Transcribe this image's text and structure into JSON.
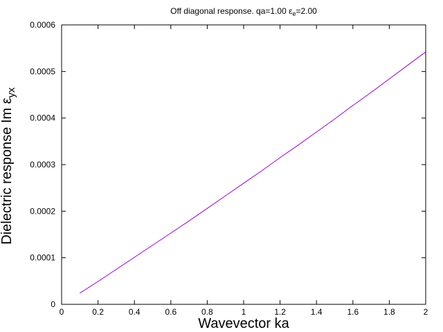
{
  "chart_data": {
    "type": "line",
    "title": [
      "Off diagonal response. qa=1.00 ε",
      "e",
      "=2.00"
    ],
    "x_label": "Wavevector ka",
    "y_label": [
      "Dielectric response Im ε",
      "yx"
    ],
    "x": [
      0.1,
      0.2,
      0.3,
      0.4,
      0.5,
      0.6,
      0.7,
      0.8,
      0.9,
      1.0,
      1.1,
      1.2,
      1.3,
      1.4,
      1.5,
      1.6,
      1.7,
      1.8,
      1.9,
      2.0
    ],
    "series": [
      {
        "color": "#9400d3",
        "values": [
          2.4e-05,
          4.9e-05,
          7.5e-05,
          0.000101,
          0.000127,
          0.000153,
          0.000179,
          0.000206,
          0.000233,
          0.00026,
          0.000287,
          0.000315,
          0.000342,
          0.00037,
          0.000398,
          0.000427,
          0.000455,
          0.000484,
          0.000513,
          0.000542
        ]
      }
    ],
    "xlim": [
      0,
      2
    ],
    "xticks": [
      0,
      0.2,
      0.4,
      0.6,
      0.8,
      1,
      1.2,
      1.4,
      1.6,
      1.8,
      2
    ],
    "ylim": [
      0,
      0.0006
    ],
    "yticks": [
      0,
      0.0001,
      0.0002,
      0.0003,
      0.0004,
      0.0005,
      0.0006
    ],
    "grid": false
  }
}
